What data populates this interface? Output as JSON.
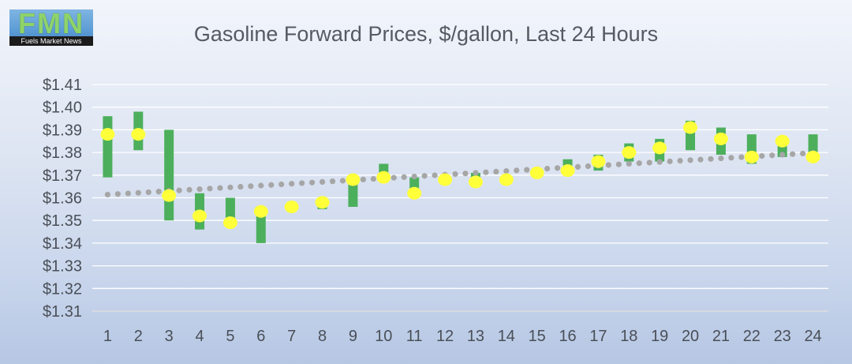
{
  "logo": {
    "letters": "FMN",
    "tagline": "Fuels Market News"
  },
  "chart_data": {
    "type": "candlestick-scatter",
    "title": "Gasoline Forward Prices, $/gallon, Last 24 Hours",
    "xlabel": "",
    "ylabel": "",
    "ylim": [
      1.31,
      1.41
    ],
    "y_ticks": [
      "$1.31",
      "$1.32",
      "$1.33",
      "$1.34",
      "$1.35",
      "$1.36",
      "$1.37",
      "$1.38",
      "$1.39",
      "$1.40",
      "$1.41"
    ],
    "y_tick_values": [
      1.31,
      1.32,
      1.33,
      1.34,
      1.35,
      1.36,
      1.37,
      1.38,
      1.39,
      1.4,
      1.41
    ],
    "categories": [
      "1",
      "2",
      "3",
      "4",
      "5",
      "6",
      "7",
      "8",
      "9",
      "10",
      "11",
      "12",
      "13",
      "14",
      "15",
      "16",
      "17",
      "18",
      "19",
      "20",
      "21",
      "22",
      "23",
      "24"
    ],
    "bars": [
      {
        "low": 1.369,
        "high": 1.396
      },
      {
        "low": 1.381,
        "high": 1.398
      },
      {
        "low": 1.35,
        "high": 1.39
      },
      {
        "low": 1.346,
        "high": 1.362
      },
      {
        "low": 1.349,
        "high": 1.36
      },
      {
        "low": 1.34,
        "high": 1.355
      },
      null,
      {
        "low": 1.355,
        "high": 1.358
      },
      {
        "low": 1.356,
        "high": 1.368
      },
      {
        "low": 1.369,
        "high": 1.375
      },
      {
        "low": 1.363,
        "high": 1.369
      },
      {
        "low": 1.366,
        "high": 1.37
      },
      {
        "low": 1.367,
        "high": 1.371
      },
      null,
      null,
      {
        "low": 1.37,
        "high": 1.377
      },
      {
        "low": 1.372,
        "high": 1.379
      },
      {
        "low": 1.376,
        "high": 1.384
      },
      {
        "low": 1.376,
        "high": 1.386
      },
      {
        "low": 1.381,
        "high": 1.394
      },
      {
        "low": 1.379,
        "high": 1.391
      },
      {
        "low": 1.375,
        "high": 1.388
      },
      {
        "low": 1.378,
        "high": 1.387
      },
      {
        "low": 1.378,
        "high": 1.388
      }
    ],
    "series": [
      {
        "name": "Price",
        "style": "yellow-dot",
        "values": [
          1.388,
          1.388,
          1.361,
          1.352,
          1.349,
          1.354,
          1.356,
          1.358,
          1.368,
          1.369,
          1.362,
          1.368,
          1.367,
          1.368,
          1.371,
          1.372,
          1.376,
          1.38,
          1.382,
          1.391,
          1.386,
          1.378,
          1.385,
          1.378
        ]
      },
      {
        "name": "Trend",
        "style": "dotted-gray",
        "values": [
          1.3614,
          1.3622,
          1.363,
          1.3638,
          1.3646,
          1.3654,
          1.3662,
          1.367,
          1.3678,
          1.3686,
          1.3694,
          1.3702,
          1.371,
          1.3718,
          1.3726,
          1.3734,
          1.3742,
          1.375,
          1.3758,
          1.3766,
          1.3774,
          1.3782,
          1.379,
          1.3798
        ]
      }
    ],
    "colors": {
      "bar": "#4caf5c",
      "dot": "#ffff3a",
      "trend": "#a6a6a6",
      "grid": "#ffffff",
      "text": "#4a4f57"
    },
    "grid": true,
    "legend": "none"
  }
}
